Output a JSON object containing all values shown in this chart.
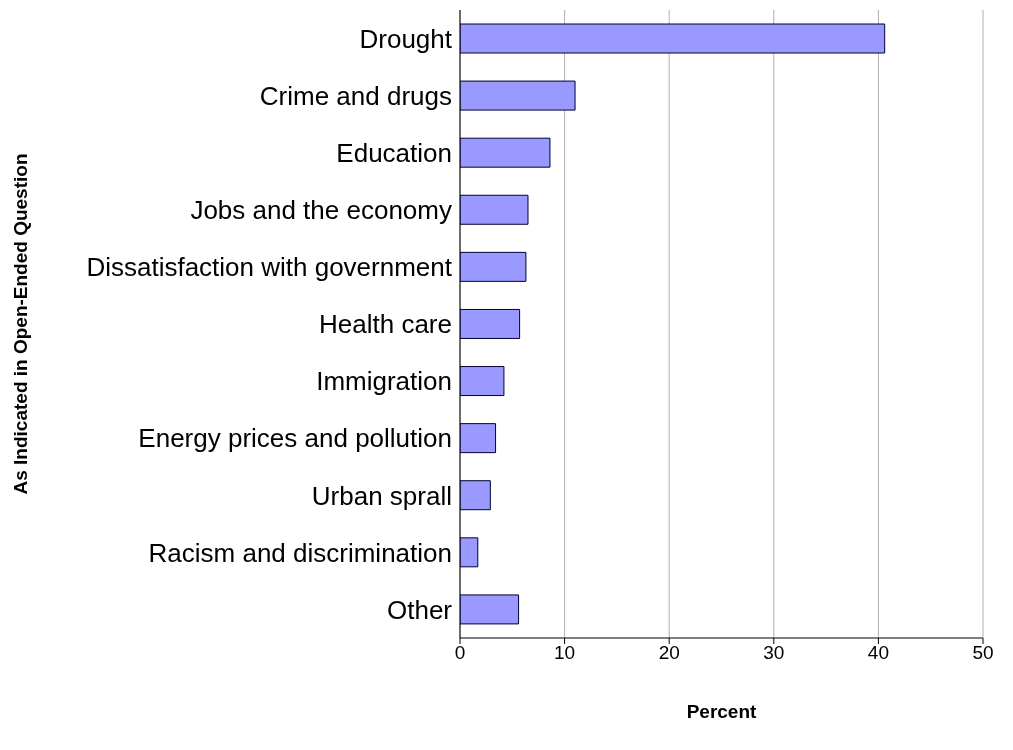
{
  "chart_data": {
    "type": "bar",
    "orientation": "horizontal",
    "xlabel": "Percent",
    "ylabel": "As Indicated in Open-Ended Question",
    "categories": [
      "Drought",
      "Crime and drugs",
      "Education",
      "Jobs and the economy",
      "Dissatisfaction with government",
      "Health care",
      "Immigration",
      "Energy prices and pollution",
      "Urban sprall",
      "Racism and discrimination",
      "Other"
    ],
    "values": [
      40.6,
      11.0,
      8.6,
      6.5,
      6.3,
      5.7,
      4.2,
      3.4,
      2.9,
      1.7,
      5.6
    ],
    "color": "#9999ff",
    "xlim": [
      0,
      50
    ],
    "xticks": [
      0,
      10,
      20,
      30,
      40,
      50
    ],
    "grid": "x"
  }
}
